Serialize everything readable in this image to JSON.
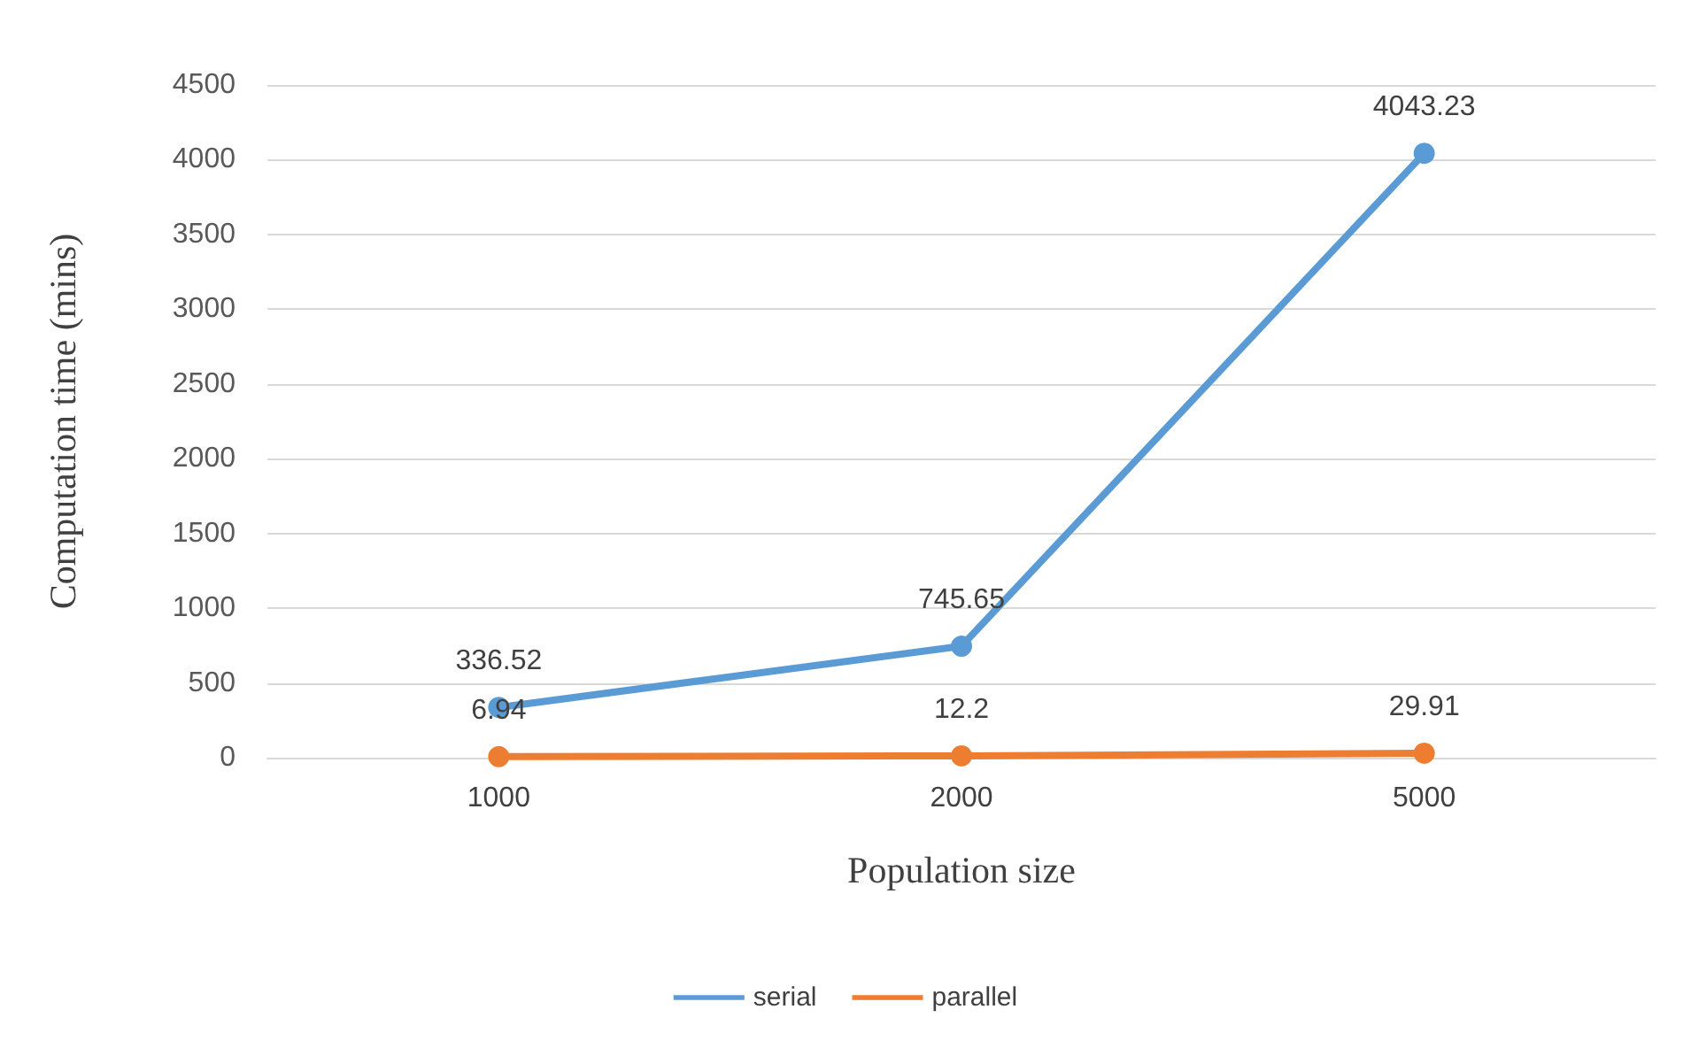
{
  "chart_data": {
    "type": "line",
    "xlabel": "Population size",
    "ylabel": "Computation time (mins)",
    "categories": [
      "1000",
      "2000",
      "5000"
    ],
    "series": [
      {
        "name": "serial",
        "color": "#5b9bd5",
        "values": [
          336.52,
          745.65,
          4043.23
        ]
      },
      {
        "name": "parallel",
        "color": "#ed7d31",
        "values": [
          6.94,
          12.2,
          29.91
        ]
      }
    ],
    "ylim": [
      0,
      4500
    ],
    "yticks": [
      0,
      500,
      1000,
      1500,
      2000,
      2500,
      3000,
      3500,
      4000,
      4500
    ],
    "grid": "y",
    "legend": "bottom",
    "marker": "circle",
    "line_style": "solid",
    "data_labels": true
  }
}
